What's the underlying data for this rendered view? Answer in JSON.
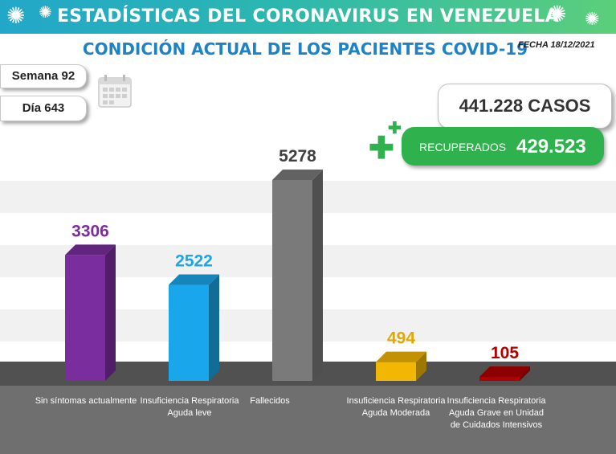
{
  "header": {
    "title": "ESTADÍSTICAS DEL CORONAVIRUS EN VENEZUELA",
    "subtitle": "CONDICIÓN ACTUAL DE LOS PACIENTES COVID-19",
    "fecha": "FECHA 18/12/2021",
    "accent": "#1d83c6"
  },
  "info": {
    "semana": "Semana 92",
    "dia": "Día 643"
  },
  "totals": {
    "casos": "441.228 CASOS",
    "recuperados_label": "RECUPERADOS",
    "recuperados_value": "429.523",
    "recuperados_color": "#2fb24d"
  },
  "icons": {
    "calendar": "calendar-icon",
    "plus": "plus-icon",
    "virus": "virus-icon"
  },
  "chart_data": {
    "type": "bar",
    "categories": [
      "Sin síntomas actualmente",
      "Insuficiencia Respiratoria Aguda leve",
      "Fallecidos",
      "Insuficiencia Respiratoria Aguda Moderada",
      "Insuficiencia Respiratoria Aguda Grave en Unidad de Cuidados Intensivos"
    ],
    "values": [
      3306,
      2522,
      5278,
      494,
      105
    ],
    "labels": [
      "3306",
      "2522",
      "5278",
      "494",
      "105"
    ],
    "colors": [
      "#7a2e9e",
      "#1aa6ea",
      "#7a7a7a",
      "#f2b705",
      "#b00000"
    ],
    "label_colors": [
      "#7a2e9e",
      "#1aa6ea",
      "#404040",
      "#e0a800",
      "#b00000"
    ],
    "grid": true
  }
}
